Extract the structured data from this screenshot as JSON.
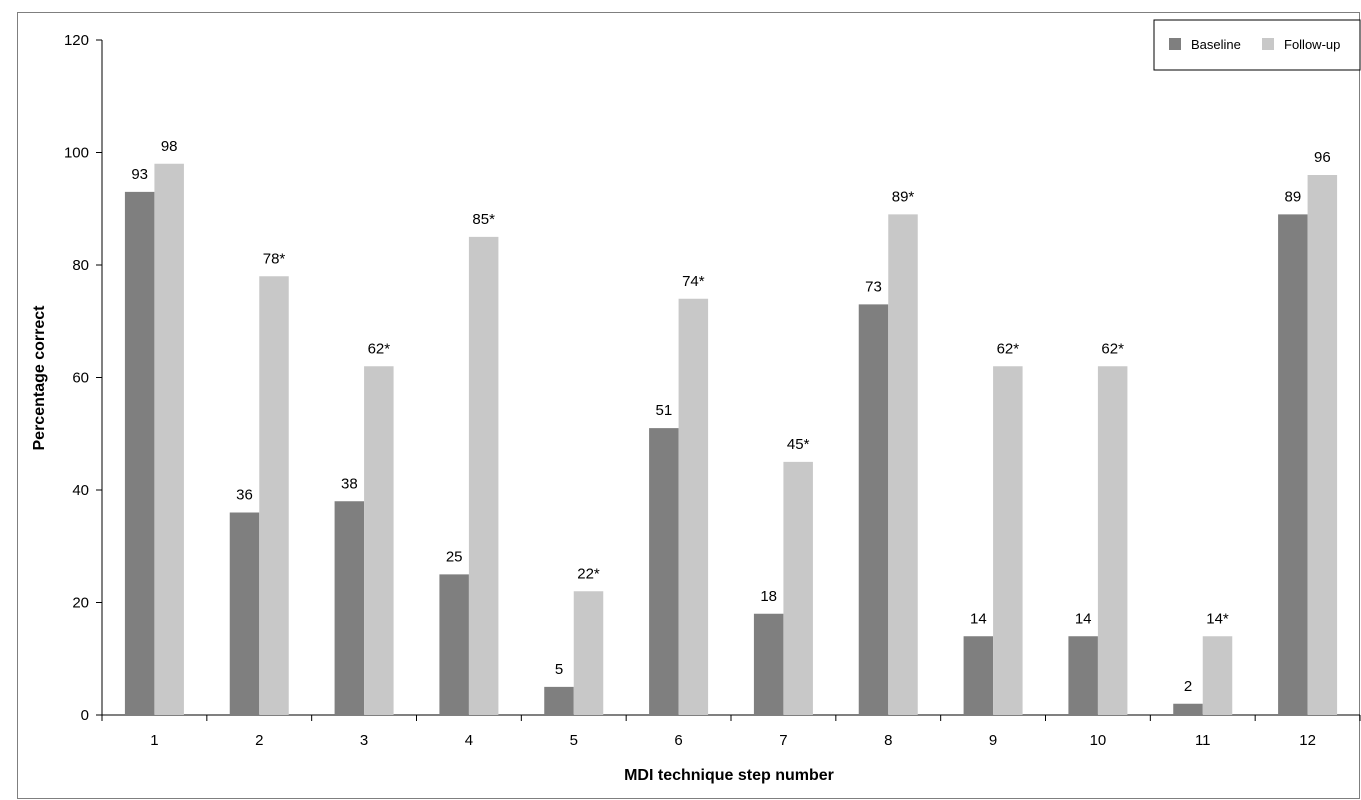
{
  "chart_data": {
    "type": "bar",
    "title": "",
    "xlabel": "MDI technique step number",
    "ylabel": "Percentage correct",
    "ylim": [
      0,
      120
    ],
    "yticks": [
      "0",
      "20",
      "40",
      "60",
      "80",
      "100",
      "120"
    ],
    "grid": false,
    "legend_position": "top-right",
    "categories": [
      "1",
      "2",
      "3",
      "4",
      "5",
      "6",
      "7",
      "8",
      "9",
      "10",
      "11",
      "12"
    ],
    "series": [
      {
        "name": "Baseline",
        "color": "#7f7f7f",
        "values": [
          93,
          36,
          38,
          25,
          5,
          51,
          18,
          73,
          14,
          14,
          2,
          89
        ],
        "labels": [
          "93",
          "36",
          "38",
          "25",
          "5",
          "51",
          "18",
          "73",
          "14",
          "14",
          "2",
          "89"
        ]
      },
      {
        "name": "Follow-up",
        "color": "#c8c8c8",
        "values": [
          98,
          78,
          62,
          85,
          22,
          74,
          45,
          89,
          62,
          62,
          14,
          96
        ],
        "labels": [
          "98",
          "78*",
          "62*",
          "85*",
          "22*",
          "74*",
          "45*",
          "89*",
          "62*",
          "62*",
          "14*",
          "96"
        ]
      }
    ]
  }
}
